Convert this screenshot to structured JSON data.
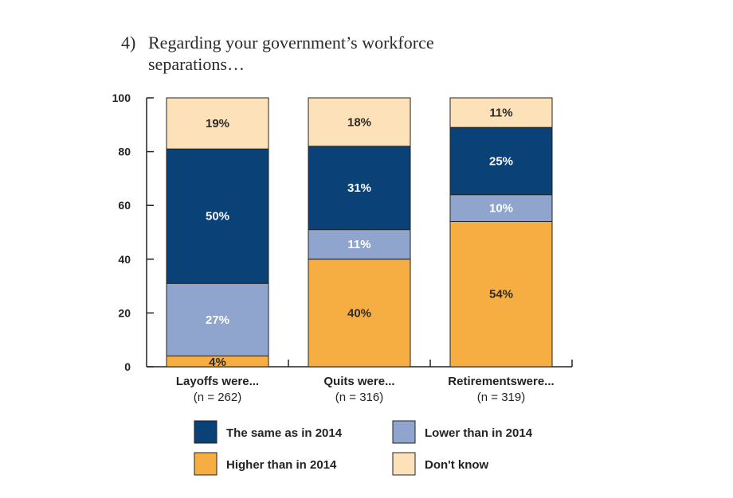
{
  "title": {
    "number": "4)",
    "line1": "Regarding your government’s workforce",
    "line2": "separations…"
  },
  "chart_data": {
    "type": "bar",
    "stacked": true,
    "ylim": [
      0,
      100
    ],
    "yticks": [
      "0",
      "20",
      "40",
      "60",
      "80",
      "100"
    ],
    "categories": [
      "Layoffs were...",
      "Quits were...",
      "Retirementswere..."
    ],
    "category_counts": [
      "(n = 262)",
      "(n = 316)",
      "(n = 319)"
    ],
    "series": [
      {
        "name": "Higher than in 2014",
        "values": [
          4,
          40,
          54
        ],
        "labels": [
          "4%",
          "40%",
          "54%"
        ],
        "color": "#f6ae42",
        "label_color": "#2b2b2b"
      },
      {
        "name": "Lower than in 2014",
        "values": [
          27,
          11,
          10
        ],
        "labels": [
          "27%",
          "11%",
          "10%"
        ],
        "color": "#8fa5cd",
        "label_color": "#ffffff"
      },
      {
        "name": "The same as in 2014",
        "values": [
          50,
          31,
          25
        ],
        "labels": [
          "50%",
          "31%",
          "25%"
        ],
        "color": "#0a4278",
        "label_color": "#ffffff"
      },
      {
        "name": "Don't know",
        "values": [
          19,
          18,
          11
        ],
        "labels": [
          "19%",
          "18%",
          "11%"
        ],
        "color": "#fde1b8",
        "label_color": "#2b2b2b"
      }
    ],
    "legend": {
      "placement": "bottom",
      "order": [
        "The same as in 2014",
        "Lower than in 2014",
        "Higher than in 2014",
        "Don't know"
      ]
    },
    "grid": false
  }
}
